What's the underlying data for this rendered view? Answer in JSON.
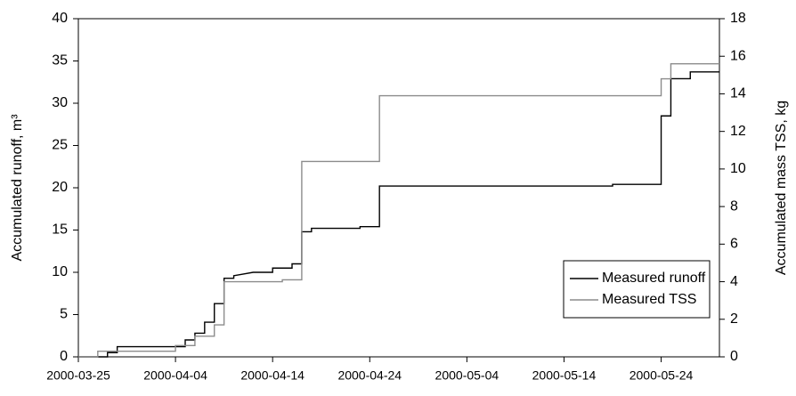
{
  "chart_data": {
    "type": "line",
    "step": true,
    "ylabel": "Accumulated runoff, m³",
    "y2label": "Accumulated mass TSS, kg",
    "xlim": [
      "2000-03-25",
      "2000-05-30"
    ],
    "xticks": [
      "2000-03-25",
      "2000-04-04",
      "2000-04-14",
      "2000-04-24",
      "2000-05-04",
      "2000-05-14",
      "2000-05-24"
    ],
    "ylim": [
      0,
      40
    ],
    "yticks": [
      0,
      5,
      10,
      15,
      20,
      25,
      30,
      35,
      40
    ],
    "y2lim": [
      0,
      18
    ],
    "y2ticks": [
      0,
      2,
      4,
      6,
      8,
      10,
      12,
      14,
      16,
      18
    ],
    "grid": false,
    "legend": "lower right",
    "series": [
      {
        "name": "Measured runoff",
        "color": "#000000",
        "axis": "y",
        "x": [
          "2000-03-25",
          "2000-03-28",
          "2000-03-28",
          "2000-03-29",
          "2000-03-29",
          "2000-04-05",
          "2000-04-05",
          "2000-04-06",
          "2000-04-06",
          "2000-04-07",
          "2000-04-07",
          "2000-04-08",
          "2000-04-08",
          "2000-04-09",
          "2000-04-09",
          "2000-04-10",
          "2000-04-10",
          "2000-04-11",
          "2000-04-12",
          "2000-04-14",
          "2000-04-14",
          "2000-04-16",
          "2000-04-16",
          "2000-04-17",
          "2000-04-17",
          "2000-04-18",
          "2000-04-18",
          "2000-04-23",
          "2000-04-23",
          "2000-04-25",
          "2000-04-25",
          "2000-05-19",
          "2000-05-19",
          "2000-05-24",
          "2000-05-24",
          "2000-05-25",
          "2000-05-25",
          "2000-05-27",
          "2000-05-27",
          "2000-05-30"
        ],
        "values": [
          0,
          0,
          0.5,
          0.5,
          1.2,
          1.2,
          2.0,
          2.0,
          2.8,
          2.8,
          4.1,
          4.1,
          6.3,
          6.3,
          9.3,
          9.3,
          9.6,
          9.8,
          10.0,
          10.0,
          10.5,
          10.5,
          11.0,
          11.0,
          14.8,
          14.8,
          15.2,
          15.2,
          15.4,
          15.4,
          20.2,
          20.2,
          20.4,
          20.4,
          28.5,
          28.5,
          32.9,
          32.9,
          33.7,
          33.7
        ]
      },
      {
        "name": "Measured TSS",
        "color": "#8c8c8c",
        "axis": "y2",
        "x": [
          "2000-03-25",
          "2000-03-27",
          "2000-03-27",
          "2000-04-04",
          "2000-04-04",
          "2000-04-06",
          "2000-04-06",
          "2000-04-08",
          "2000-04-08",
          "2000-04-09",
          "2000-04-09",
          "2000-04-15",
          "2000-04-15",
          "2000-04-17",
          "2000-04-17",
          "2000-04-25",
          "2000-04-25",
          "2000-05-24",
          "2000-05-24",
          "2000-05-25",
          "2000-05-25",
          "2000-05-30"
        ],
        "values": [
          0,
          0,
          0.3,
          0.3,
          0.6,
          0.6,
          1.1,
          1.1,
          1.7,
          1.7,
          4.0,
          4.0,
          4.1,
          4.1,
          10.4,
          10.4,
          13.9,
          13.9,
          14.8,
          14.8,
          15.6,
          15.6
        ]
      }
    ]
  }
}
